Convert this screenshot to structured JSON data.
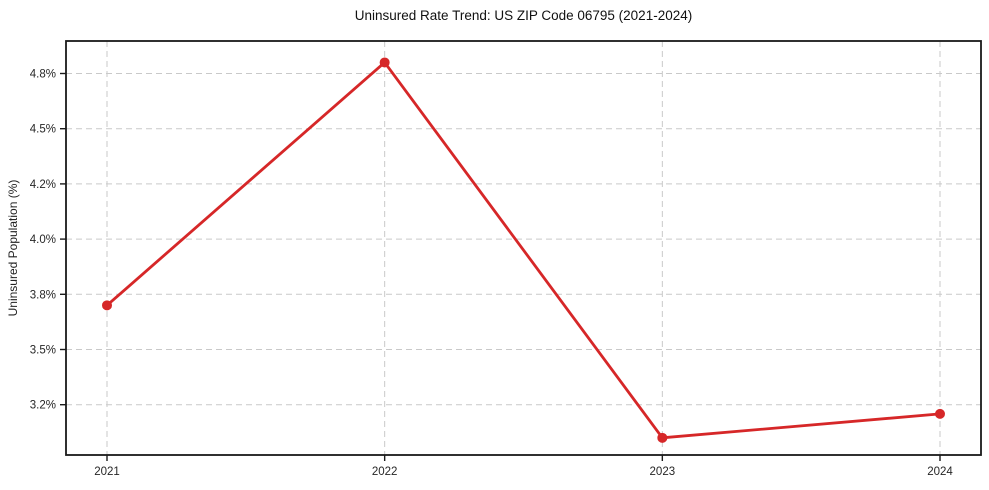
{
  "chart_data": {
    "type": "line",
    "title": "Uninsured Rate Trend: US ZIP Code 06795 (2021-2024)",
    "xlabel": "",
    "ylabel": "Uninsured Population (%)",
    "categories": [
      "2021",
      "2022",
      "2023",
      "2024"
    ],
    "series": [
      {
        "name": "Uninsured Population (%)",
        "values": [
          3.74,
          4.86,
          3.02,
          3.15
        ]
      }
    ],
    "y_ticks": [
      {
        "value": 4.8,
        "label": "4.8%"
      },
      {
        "value": 4.5,
        "label": "4.5%"
      },
      {
        "value": 4.2,
        "label": "4.2%"
      },
      {
        "value": 4.0,
        "label": "4.0%"
      },
      {
        "value": 3.8,
        "label": "3.8%"
      },
      {
        "value": 3.5,
        "label": "3.5%"
      },
      {
        "value": 3.2,
        "label": "3.2%"
      }
    ],
    "grid": true,
    "grid_style": "dashed",
    "legend": false,
    "line_color": "#d62728",
    "marker_color": "#d62728",
    "grid_color": "#c9c9c9",
    "axis_color": "#1a1a1a",
    "text_color": "#262626",
    "background_color": "#ffffff"
  }
}
